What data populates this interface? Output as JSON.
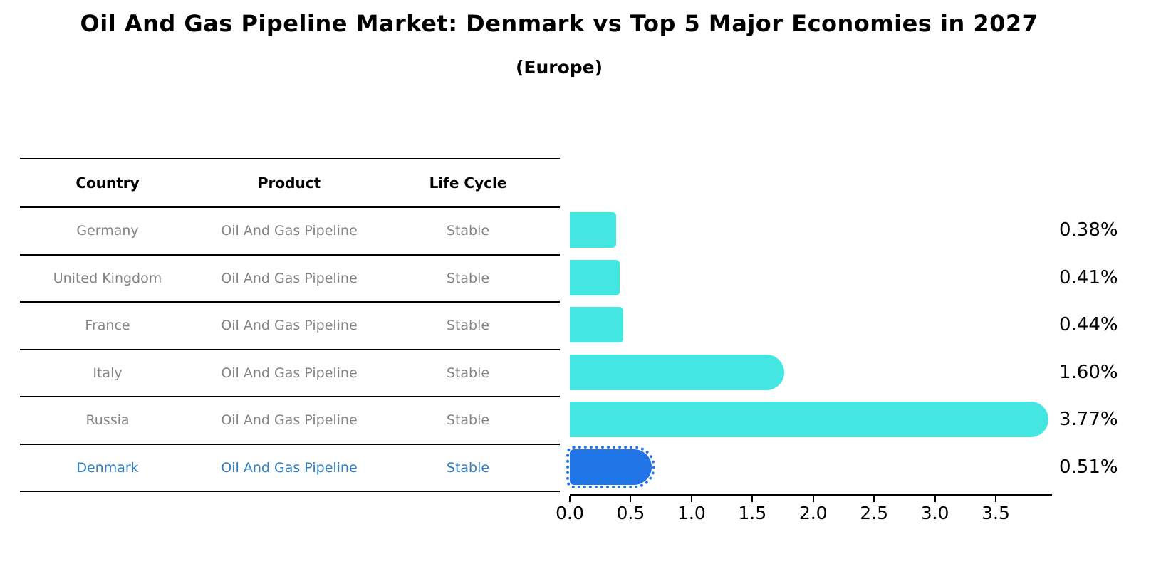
{
  "title": "Oil And Gas Pipeline Market: Denmark vs Top 5 Major Economies in 2027",
  "subtitle": "(Europe)",
  "table": {
    "columns": [
      "Country",
      "Product",
      "Life Cycle"
    ],
    "rows": [
      {
        "country": "Germany",
        "product": "Oil And Gas Pipeline",
        "life_cycle": "Stable",
        "highlight": false
      },
      {
        "country": "United Kingdom",
        "product": "Oil And Gas Pipeline",
        "life_cycle": "Stable",
        "highlight": false
      },
      {
        "country": "France",
        "product": "Oil And Gas Pipeline",
        "life_cycle": "Stable",
        "highlight": false
      },
      {
        "country": "Italy",
        "product": "Oil And Gas Pipeline",
        "life_cycle": "Stable",
        "highlight": false
      },
      {
        "country": "Russia",
        "product": "Oil And Gas Pipeline",
        "life_cycle": "Stable",
        "highlight": false
      },
      {
        "country": "Denmark",
        "product": "Oil And Gas Pipeline",
        "life_cycle": "Stable",
        "highlight": true
      }
    ]
  },
  "chart_data": {
    "type": "bar",
    "orientation": "horizontal",
    "title": "Oil And Gas Pipeline Market: Denmark vs Top 5 Major Economies in 2027",
    "subtitle": "(Europe)",
    "categories": [
      "Germany",
      "United Kingdom",
      "France",
      "Italy",
      "Russia",
      "Denmark"
    ],
    "values": [
      0.38,
      0.41,
      0.44,
      1.6,
      3.77,
      0.51
    ],
    "value_labels": [
      "0.38%",
      "0.41%",
      "0.44%",
      "1.60%",
      "3.77%",
      "0.51%"
    ],
    "highlight_index": 5,
    "xlim": [
      0,
      4.0
    ],
    "x_ticks": [
      0.0,
      0.5,
      1.0,
      1.5,
      2.0,
      2.5,
      3.0,
      3.5
    ],
    "x_tick_labels": [
      "0.0",
      "0.5",
      "1.0",
      "1.5",
      "2.0",
      "2.5",
      "3.0",
      "3.5"
    ],
    "grid": false,
    "legend": "none"
  },
  "colors": {
    "bar": "#43E6E1",
    "highlight_bar": "#2175E6",
    "highlight_text": "#2F7EC3",
    "row_text": "#848484",
    "header_text": "#000000",
    "axis_line": "#000000"
  }
}
